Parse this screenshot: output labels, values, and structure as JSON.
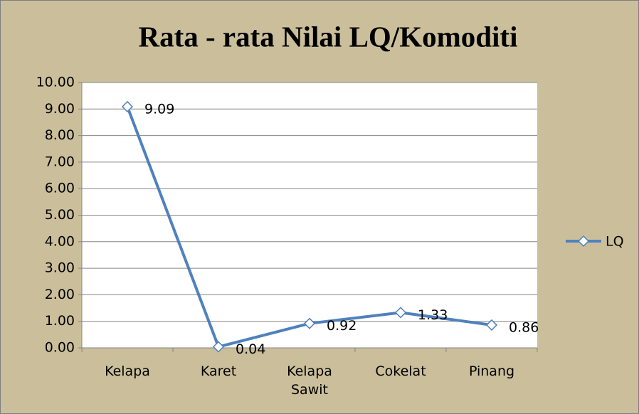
{
  "chart_data": {
    "type": "line",
    "title": "Rata - rata Nilai LQ/Komoditi",
    "categories": [
      "Kelapa",
      "Karet",
      "Kelapa Sawit",
      "Cokelat",
      "Pinang"
    ],
    "series": [
      {
        "name": "LQ",
        "color": "#4f81bd",
        "values": [
          9.09,
          0.04,
          0.92,
          1.33,
          0.86
        ]
      }
    ],
    "ylim": [
      0,
      10
    ],
    "yticks": [
      {
        "value": 0,
        "label": "0.00"
      },
      {
        "value": 1,
        "label": "1.00"
      },
      {
        "value": 2,
        "label": "2.00"
      },
      {
        "value": 3,
        "label": "3.00"
      },
      {
        "value": 4,
        "label": "4.00"
      },
      {
        "value": 5,
        "label": "5.00"
      },
      {
        "value": 6,
        "label": "6.00"
      },
      {
        "value": 7,
        "label": "7.00"
      },
      {
        "value": 8,
        "label": "8.00"
      },
      {
        "value": 9,
        "label": "9.00"
      },
      {
        "value": 10,
        "label": "10.00"
      }
    ],
    "grid": true,
    "legend": "right"
  }
}
